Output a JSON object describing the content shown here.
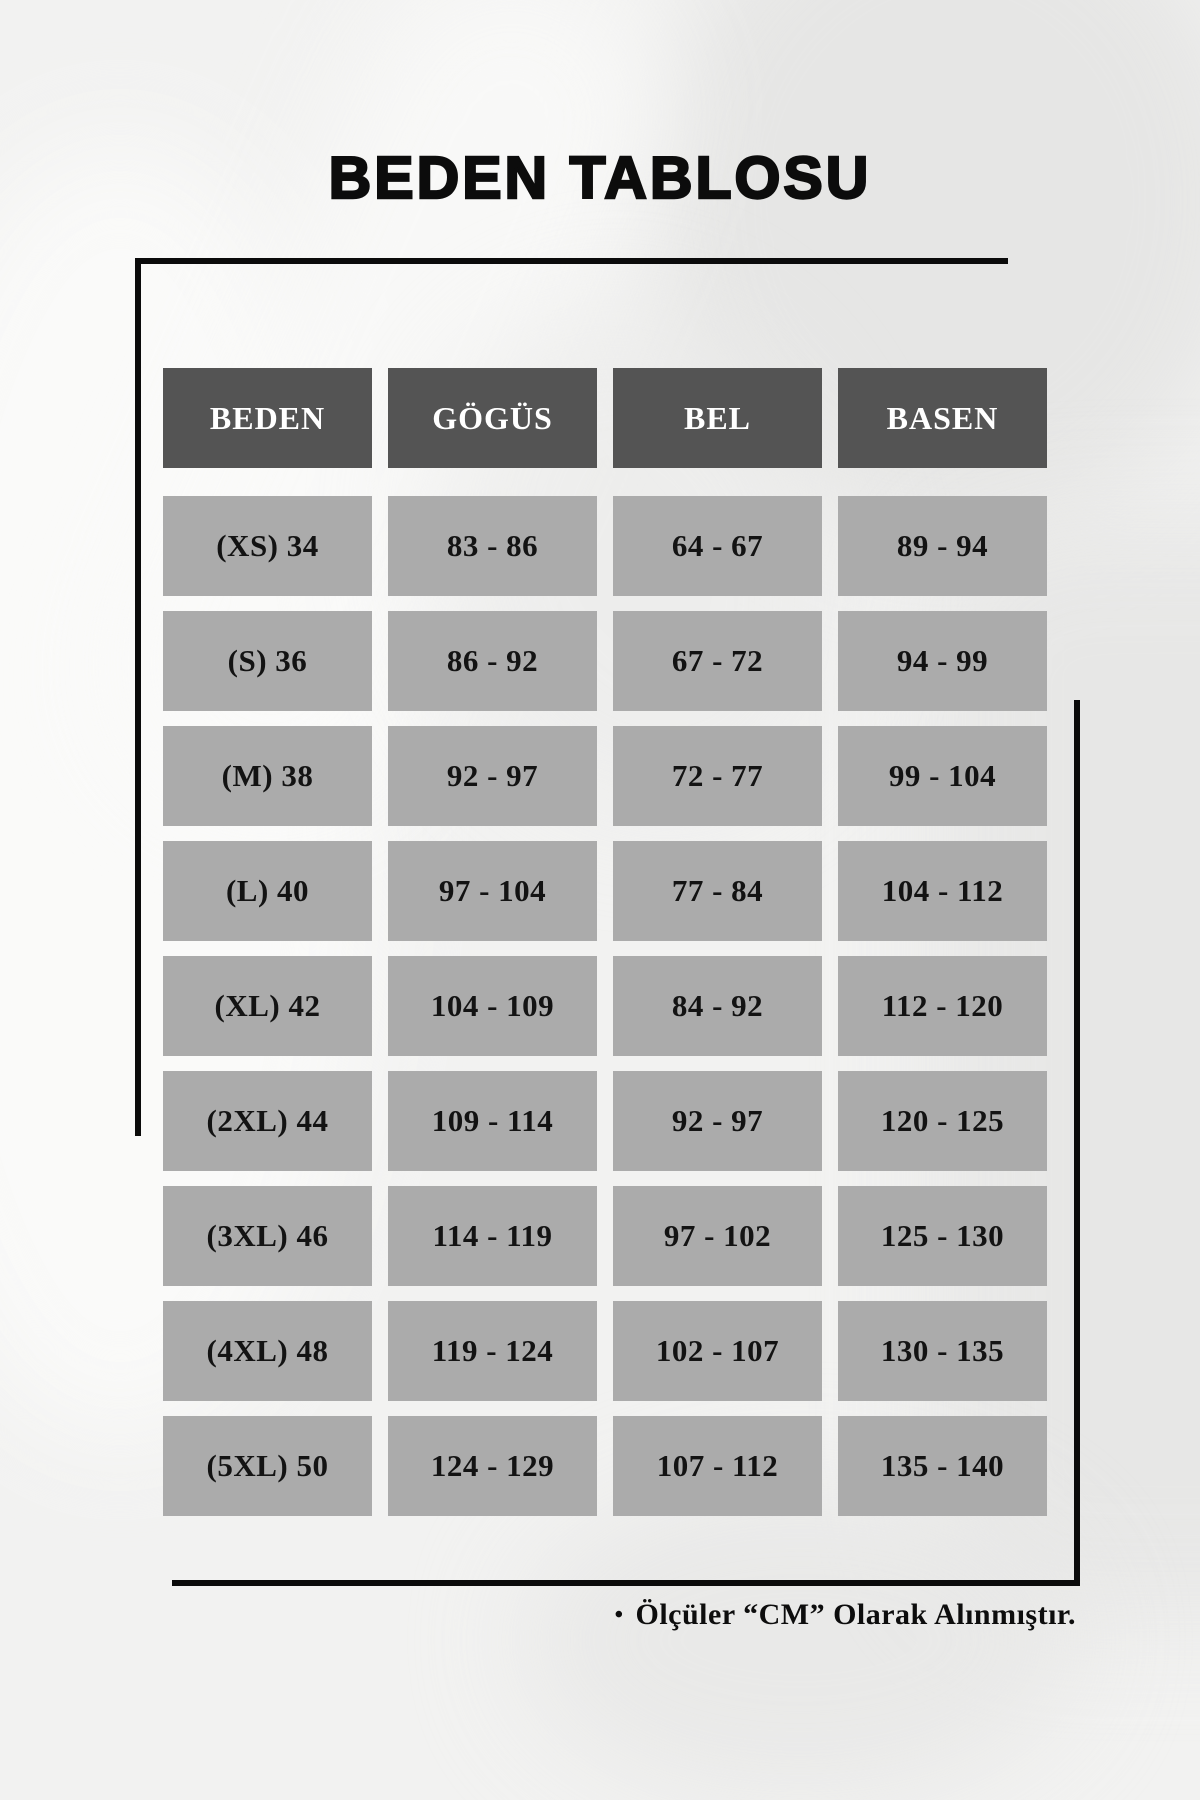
{
  "title": "BEDEN TABLOSU",
  "chart_data": {
    "type": "table",
    "title": "BEDEN TABLOSU",
    "columns": [
      "BEDEN",
      "GÖGÜS",
      "BEL",
      "BASEN"
    ],
    "rows": [
      [
        "(XS) 34",
        "83 - 86",
        "64 - 67",
        "89 - 94"
      ],
      [
        "(S) 36",
        "86 - 92",
        "67 - 72",
        "94 - 99"
      ],
      [
        "(M) 38",
        "92 - 97",
        "72 - 77",
        "99 - 104"
      ],
      [
        "(L) 40",
        "97 - 104",
        "77 - 84",
        "104 - 112"
      ],
      [
        "(XL) 42",
        "104 - 109",
        "84 - 92",
        "112 - 120"
      ],
      [
        "(2XL) 44",
        "109 - 114",
        "92 - 97",
        "120 - 125"
      ],
      [
        "(3XL) 46",
        "114 - 119",
        "97 - 102",
        "125 - 130"
      ],
      [
        "(4XL) 48",
        "119 - 124",
        "102 - 107",
        "130 - 135"
      ],
      [
        "(5XL) 50",
        "124 - 129",
        "107 - 112",
        "135 - 140"
      ]
    ],
    "unit_note": "Ölçüler “CM” Olarak Alınmıştır."
  },
  "footer": {
    "bullet": "•",
    "note": "Ölçüler “CM” Olarak Alınmıştır."
  },
  "colors": {
    "header_bg": "#545454",
    "header_text": "#ffffff",
    "cell_bg": "#ababab",
    "cell_text": "#131313",
    "decor_line": "#0b0b0b",
    "page_bg": "#f2f2f1"
  }
}
